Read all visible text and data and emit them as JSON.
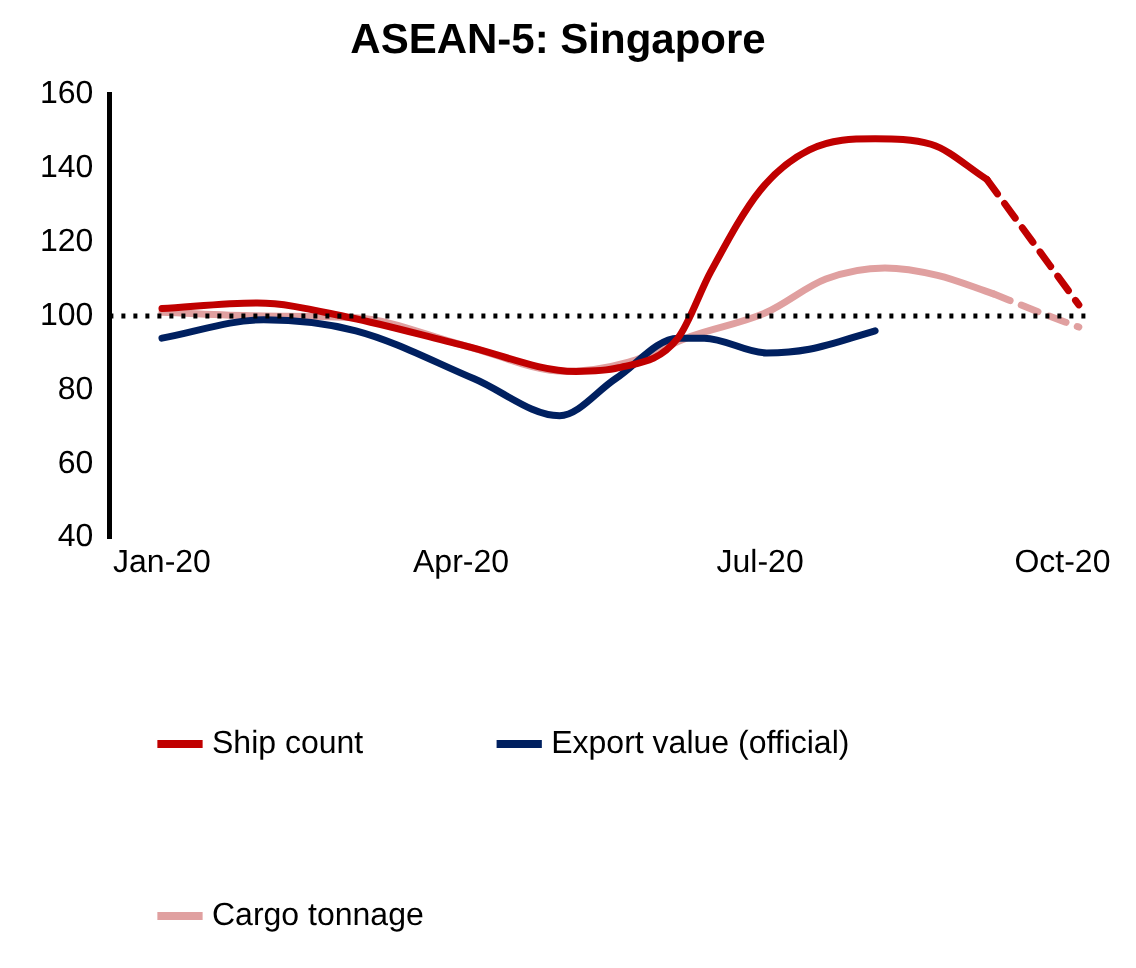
{
  "chart_data": {
    "type": "line",
    "title": "ASEAN-5: Singapore",
    "xlim": [
      "2019-12-16",
      "2020-10-10"
    ],
    "xticks": [
      {
        "value": "2020-01-01",
        "label": "Jan-20"
      },
      {
        "value": "2020-04-01",
        "label": "Apr-20"
      },
      {
        "value": "2020-07-01",
        "label": "Jul-20"
      },
      {
        "value": "2020-10-01",
        "label": "Oct-20"
      }
    ],
    "ylim": [
      40,
      160
    ],
    "yticks": [
      40,
      60,
      80,
      100,
      120,
      140,
      160
    ],
    "grid": false,
    "legend": "bottom",
    "marker": "none",
    "ref_lines": [
      {
        "axis": "y",
        "value": 100,
        "color": "#000000",
        "line_style": "dotted"
      }
    ],
    "series": [
      {
        "name": "Ship count",
        "color": "#c00000",
        "line_style": "solid",
        "x": [
          "2020-01-01",
          "2020-01-30",
          "2020-02-27",
          "2020-04-02",
          "2020-05-06",
          "2020-05-19",
          "2020-06-06",
          "2020-06-16",
          "2020-07-01",
          "2020-07-16",
          "2020-08-05",
          "2020-08-22",
          "2020-09-08"
        ],
        "values": [
          102,
          103.5,
          99.6,
          92,
          85,
          86,
          94,
          112,
          134,
          145,
          148,
          146.5,
          137
        ]
      },
      {
        "name": "Export value (official)",
        "color": "#002060",
        "line_style": "solid",
        "x": [
          "2020-01-01",
          "2020-02-01",
          "2020-02-29",
          "2020-04-05",
          "2020-05-01",
          "2020-05-18",
          "2020-06-06",
          "2020-06-14",
          "2020-07-03",
          "2020-07-16",
          "2020-08-05"
        ],
        "values": [
          94,
          99,
          96,
          83,
          73,
          83,
          94,
          94,
          90,
          91,
          96
        ]
      },
      {
        "name": "Cargo tonnage",
        "color": "#e0a0a0",
        "line_style": "solid",
        "x": [
          "2020-01-01",
          "2020-02-01",
          "2020-02-29",
          "2020-04-02",
          "2020-05-03",
          "2020-05-22",
          "2020-06-10",
          "2020-07-03",
          "2020-07-21",
          "2020-08-08",
          "2020-08-24",
          "2020-09-10"
        ],
        "values": [
          101,
          100,
          99.5,
          92,
          85,
          87.5,
          94.5,
          101,
          110,
          113,
          111,
          106
        ]
      },
      {
        "color": "#c00000",
        "line_style": "dashed",
        "x": [
          "2020-09-08",
          "2020-09-22",
          "2020-10-06"
        ],
        "values": [
          137,
          120,
          103
        ]
      },
      {
        "color": "#e0a0a0",
        "line_style": "dashed",
        "x": [
          "2020-09-10",
          "2020-09-24",
          "2020-10-06"
        ],
        "values": [
          106,
          101,
          97
        ]
      }
    ]
  }
}
